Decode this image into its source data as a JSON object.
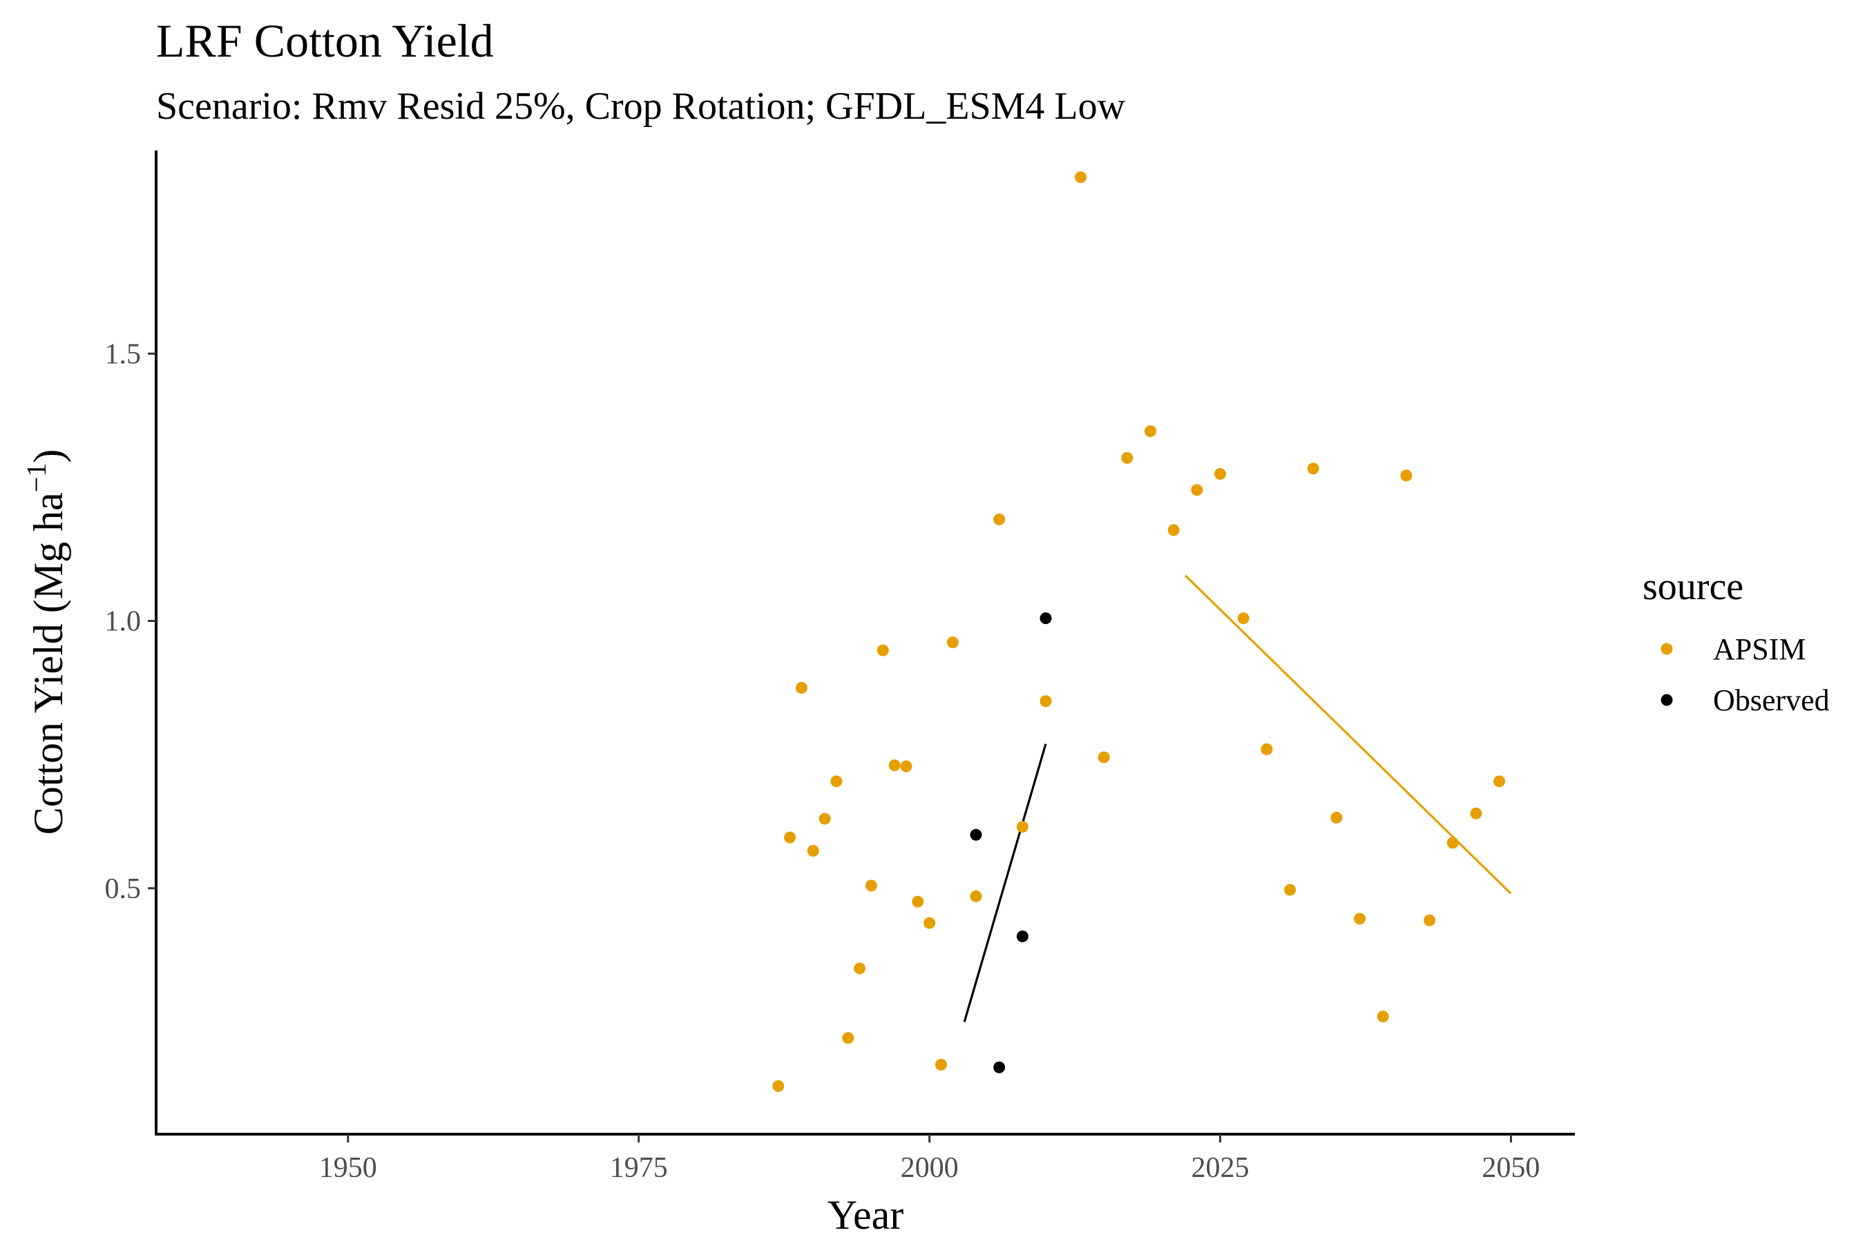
{
  "chart_data": {
    "type": "scatter",
    "title": "LRF Cotton Yield",
    "subtitle": "Scenario: Rmv Resid 25%, Crop Rotation; GFDL_ESM4 Low",
    "xlabel": "Year",
    "ylabel": "Cotton Yield (Mg ha",
    "ylabel_superscript": "−1",
    "ylabel_close": ")",
    "xlim": [
      1933.5,
      2055.5
    ],
    "ylim": [
      0.04,
      1.88
    ],
    "xticks": [
      1950,
      1975,
      2000,
      2025,
      2050
    ],
    "yticks": [
      0.5,
      1.0,
      1.5
    ],
    "ytick_labels": [
      "0.5",
      "1.0",
      "1.5"
    ],
    "grid": false,
    "legend": {
      "title": "source",
      "position": "right"
    },
    "series": [
      {
        "name": "APSIM",
        "color": "#E69F00",
        "points": [
          [
            1987,
            0.13
          ],
          [
            1988,
            0.595
          ],
          [
            1989,
            0.875
          ],
          [
            1990,
            0.57
          ],
          [
            1991,
            0.63
          ],
          [
            1992,
            0.7
          ],
          [
            1993,
            0.22
          ],
          [
            1994,
            0.35
          ],
          [
            1995,
            0.505
          ],
          [
            1996,
            0.945
          ],
          [
            1997,
            0.73
          ],
          [
            1998,
            0.728
          ],
          [
            1999,
            0.475
          ],
          [
            2000,
            0.435
          ],
          [
            2001,
            0.17
          ],
          [
            2002,
            0.96
          ],
          [
            2004,
            0.485
          ],
          [
            2006,
            1.19
          ],
          [
            2008,
            0.615
          ],
          [
            2010,
            0.85
          ],
          [
            2013,
            1.83
          ],
          [
            2015,
            0.745
          ],
          [
            2017,
            1.305
          ],
          [
            2019,
            1.355
          ],
          [
            2021,
            1.17
          ],
          [
            2023,
            1.245
          ],
          [
            2025,
            1.275
          ],
          [
            2027,
            1.005
          ],
          [
            2029,
            0.76
          ],
          [
            2031,
            0.497
          ],
          [
            2033,
            1.285
          ],
          [
            2035,
            0.632
          ],
          [
            2037,
            0.443
          ],
          [
            2039,
            0.26
          ],
          [
            2041,
            1.272
          ],
          [
            2043,
            0.44
          ],
          [
            2045,
            0.585
          ],
          [
            2047,
            0.64
          ],
          [
            2049,
            0.7
          ]
        ],
        "trend": [
          [
            2022,
            1.085
          ],
          [
            2050,
            0.49
          ]
        ]
      },
      {
        "name": "Observed",
        "color": "#000000",
        "points": [
          [
            2004,
            0.6
          ],
          [
            2006,
            0.165
          ],
          [
            2008,
            0.41
          ],
          [
            2010,
            1.005
          ]
        ],
        "trend": [
          [
            2003,
            0.25
          ],
          [
            2010,
            0.77
          ]
        ]
      }
    ]
  }
}
